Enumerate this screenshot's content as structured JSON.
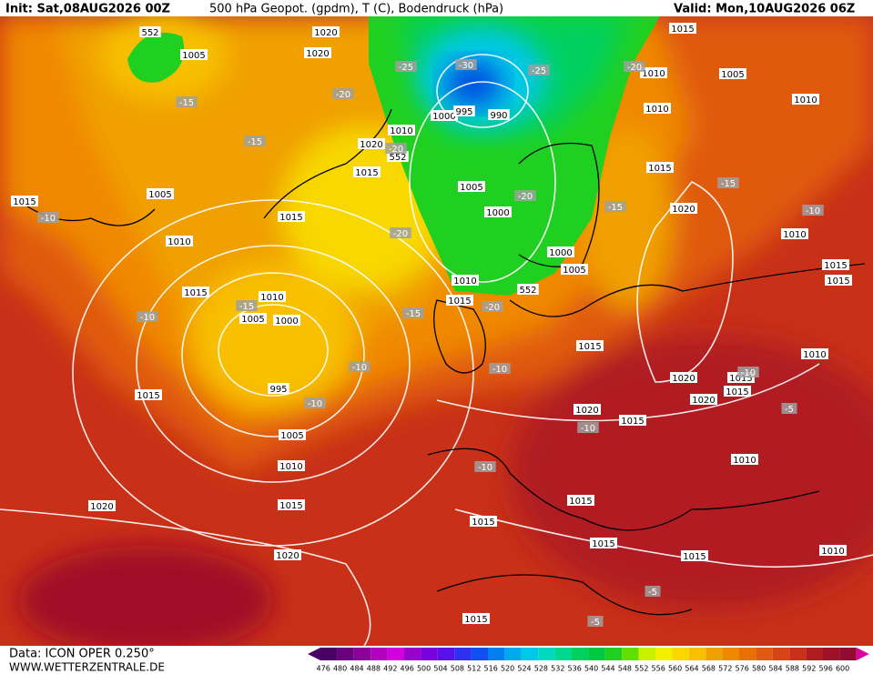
{
  "header": {
    "init": "Init: Sat,08AUG2026 00Z",
    "title": "500 hPa Geopot. (gpdm), T (C), Bodendruck (hPa)",
    "valid": "Valid: Mon,10AUG2026 06Z"
  },
  "map": {
    "pressure_labels": [
      "1020",
      "1005",
      "1020",
      "1015",
      "1010",
      "1005",
      "1010",
      "1010",
      "1000",
      "995",
      "990",
      "1010",
      "1020",
      "1015",
      "1005",
      "1005",
      "1015",
      "1015",
      "1015",
      "1020",
      "1000",
      "1010",
      "1010",
      "1000",
      "1005",
      "1015",
      "1010",
      "1015",
      "1010",
      "1015",
      "1015",
      "1005",
      "1000",
      "1015",
      "1010",
      "1020",
      "1015",
      "995",
      "1015",
      "1015",
      "1020",
      "1020",
      "1015",
      "1005",
      "1010",
      "1010",
      "1015",
      "1020",
      "1015",
      "1015",
      "1015",
      "1020",
      "1015",
      "1010",
      "1015"
    ],
    "height_labels": [
      "552",
      "552",
      "552"
    ],
    "temperature_labels": [
      "-30",
      "-25",
      "-25",
      "-20",
      "-20",
      "-15",
      "-15",
      "-20",
      "-20",
      "-15",
      "-15",
      "-10",
      "-10",
      "-20",
      "-15",
      "-10",
      "-15",
      "-20",
      "-10",
      "-10",
      "-10",
      "-10",
      "-10",
      "-10",
      "-5",
      "-5",
      "-5"
    ]
  },
  "footer": {
    "data": "Data: ICON OPER 0.250°",
    "site": "WWW.WETTERZENTRALE.DE"
  },
  "scale": {
    "values": [
      476,
      480,
      484,
      488,
      492,
      496,
      500,
      504,
      508,
      512,
      516,
      520,
      524,
      528,
      532,
      536,
      540,
      544,
      548,
      552,
      556,
      560,
      564,
      568,
      572,
      576,
      580,
      584,
      588,
      592,
      596,
      600
    ],
    "colors": [
      "#4b0066",
      "#6a0080",
      "#8c0099",
      "#b000c0",
      "#d000e0",
      "#9900cc",
      "#7a00dd",
      "#5a10e8",
      "#3030f0",
      "#1050f0",
      "#0080f0",
      "#00a8f0",
      "#00c8e8",
      "#00d8c0",
      "#00d890",
      "#00d060",
      "#00c840",
      "#20d020",
      "#60e000",
      "#c8f000",
      "#f0f000",
      "#f8d800",
      "#f8c000",
      "#f0a000",
      "#f08800",
      "#e87000",
      "#e05a10",
      "#d84418",
      "#c83018",
      "#b01c20",
      "#a01028",
      "#900c30"
    ]
  }
}
